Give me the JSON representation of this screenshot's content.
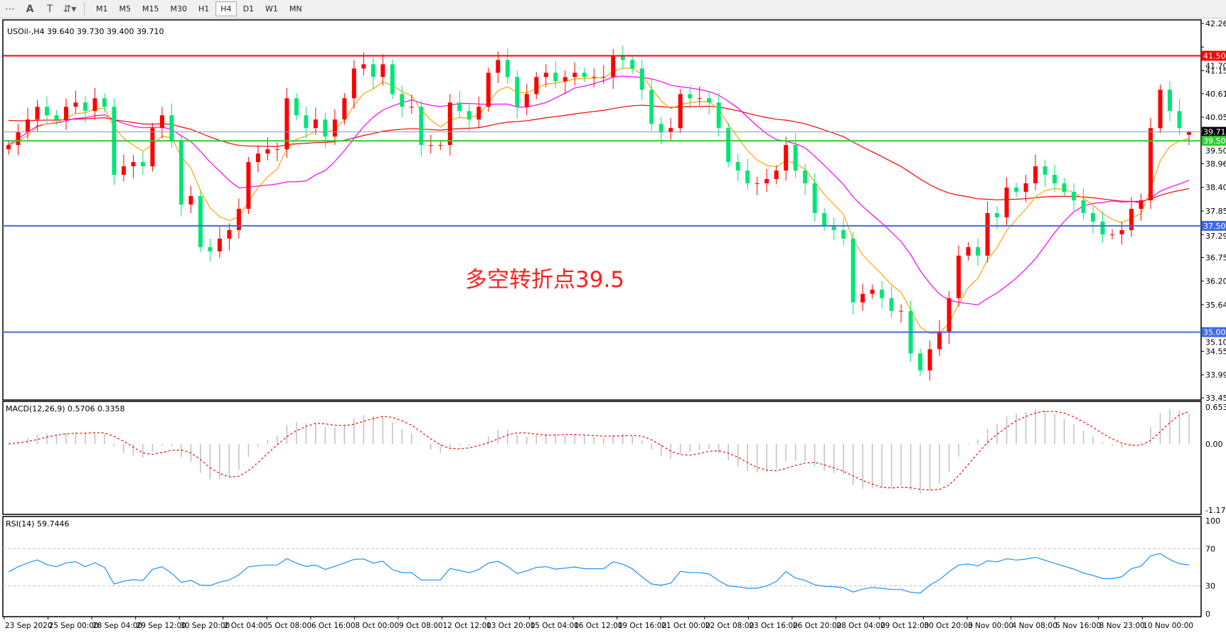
{
  "toolbar": {
    "icons": [
      "grid-lines-icon",
      "text-a-icon",
      "text-label-icon",
      "arrows-icon"
    ],
    "timeframes": [
      "M1",
      "M5",
      "M15",
      "M30",
      "H1",
      "H4",
      "D1",
      "W1",
      "MN"
    ],
    "active_timeframe": "H4"
  },
  "chart_header": "USOil-,H4  39.640 39.730 39.400 39.710",
  "annotation": "多空转折点39.5",
  "colors": {
    "up": "#ff0000",
    "down": "#00e676",
    "ma_fast": "#ffa500",
    "ma_mid": "#ff00ff",
    "ma_slow": "#ff0000",
    "rsi": "#1e90ff",
    "macd_signal": "#ff0000",
    "macd_hist": "#c0c0c0"
  },
  "chart_data": {
    "type": "candlestick",
    "symbol": "USOil-",
    "timeframe": "H4",
    "ylim": [
      33.455,
      42.26
    ],
    "price_ticks": [
      "42.260",
      "41.705",
      "41.150",
      "40.610",
      "40.055",
      "39.505",
      "38.960",
      "38.405",
      "37.850",
      "37.295",
      "36.755",
      "36.200",
      "35.645",
      "35.105",
      "34.550",
      "33.995",
      "33.455"
    ],
    "x_ticks": [
      "23 Sep 2020",
      "25 Sep 00:00",
      "28 Sep 04:00",
      "29 Sep 12:00",
      "30 Sep 20:00",
      "2 Oct 04:00",
      "5 Oct 08:00",
      "6 Oct 16:00",
      "8 Oct 00:00",
      "9 Oct 08:00",
      "12 Oct 12:00",
      "13 Oct 20:00",
      "15 Oct 04:00",
      "16 Oct 12:00",
      "19 Oct 16:00",
      "21 Oct 00:00",
      "22 Oct 08:00",
      "23 Oct 16:00",
      "26 Oct 20:00",
      "28 Oct 04:00",
      "29 Oct 12:00",
      "30 Oct 20:00",
      "3 Nov 00:00",
      "4 Nov 08:00",
      "5 Nov 16:00",
      "8 Nov 23:00",
      "10 Nov 00:00"
    ],
    "closes": [
      39.4,
      39.7,
      40.0,
      40.3,
      40.1,
      40.0,
      40.3,
      40.4,
      40.2,
      40.5,
      40.3,
      38.7,
      38.9,
      39.0,
      38.9,
      39.8,
      40.1,
      39.5,
      38.0,
      38.2,
      37.0,
      36.9,
      37.2,
      37.4,
      37.9,
      39.0,
      39.2,
      39.3,
      39.3,
      40.5,
      40.1,
      39.8,
      40.0,
      39.6,
      40.0,
      40.5,
      41.2,
      41.3,
      41.0,
      41.3,
      40.6,
      40.3,
      40.3,
      39.4,
      39.4,
      39.4,
      40.4,
      40.2,
      40.0,
      40.3,
      41.1,
      41.4,
      41.0,
      40.3,
      40.6,
      41.0,
      41.1,
      40.9,
      41.0,
      41.1,
      41.0,
      41.0,
      41.0,
      41.5,
      41.4,
      41.2,
      40.7,
      39.9,
      39.7,
      39.8,
      40.6,
      40.5,
      40.5,
      40.4,
      39.8,
      39.0,
      38.8,
      38.5,
      38.5,
      38.6,
      38.8,
      39.4,
      38.8,
      38.5,
      37.8,
      37.5,
      37.4,
      37.2,
      35.7,
      35.9,
      36.0,
      35.8,
      35.5,
      35.5,
      34.5,
      34.1,
      34.6,
      35.0,
      35.8,
      36.8,
      37.0,
      36.8,
      37.8,
      37.7,
      38.4,
      38.3,
      38.5,
      38.9,
      38.7,
      38.5,
      38.3,
      38.1,
      37.8,
      37.6,
      37.3,
      37.3,
      37.4,
      37.9,
      38.1,
      39.8,
      40.7,
      40.2,
      39.8,
      39.71
    ],
    "last_ohlc": {
      "open": 39.64,
      "high": 39.73,
      "low": 39.4,
      "close": 39.71
    },
    "current_price": "39.710",
    "horizontal_levels": [
      {
        "value": 41.5,
        "label": "41.500",
        "color": "#ff0000"
      },
      {
        "value": 39.5,
        "label": "39.500",
        "color": "#33cc33"
      },
      {
        "value": 37.5,
        "label": "37.500",
        "color": "#4169e1"
      },
      {
        "value": 35.0,
        "label": "35.000",
        "color": "#4169e1"
      }
    ],
    "macd": {
      "label": "MACD(12,26,9) 0.5706 0.3358",
      "ylim": [
        -1.1746,
        0.6537
      ],
      "ticks": [
        "0.6537",
        "0.00",
        "-1.1746"
      ]
    },
    "rsi": {
      "label": "RSI(14) 59.7446",
      "ylim": [
        0,
        100
      ],
      "ticks": [
        "100",
        "70",
        "30",
        "0"
      ],
      "levels": [
        70,
        30
      ]
    }
  }
}
